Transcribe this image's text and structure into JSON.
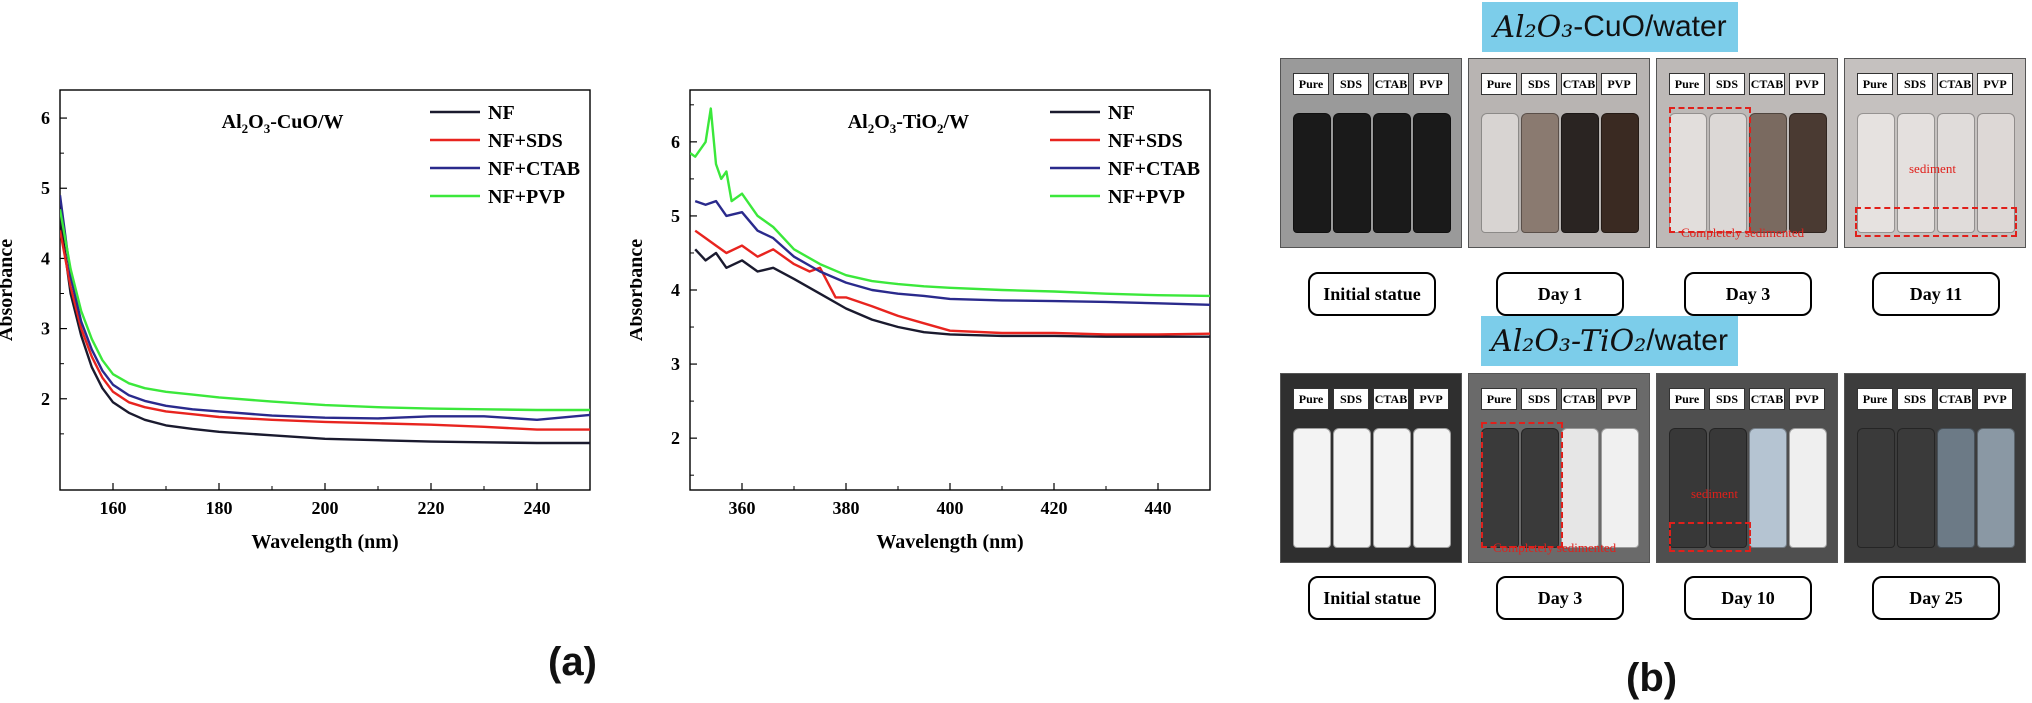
{
  "chart_data": [
    {
      "type": "line",
      "title": "",
      "annotation": "Al2O3-CuO/W",
      "xlabel": "Wavelength (nm)",
      "ylabel": "Absorbance",
      "xlim": [
        150,
        250
      ],
      "ylim": [
        0.7,
        6.4
      ],
      "xticks": [
        160,
        180,
        200,
        220,
        240
      ],
      "yticks": [
        2,
        3,
        4,
        5,
        6
      ],
      "legend": "top-right",
      "series": [
        {
          "name": "NF",
          "color": "#1a1a2e",
          "x": [
            150,
            152,
            154,
            156,
            158,
            160,
            163,
            166,
            170,
            175,
            180,
            190,
            200,
            210,
            220,
            230,
            240,
            250
          ],
          "y": [
            4.6,
            3.5,
            2.9,
            2.45,
            2.15,
            1.95,
            1.8,
            1.7,
            1.62,
            1.57,
            1.53,
            1.48,
            1.43,
            1.41,
            1.39,
            1.38,
            1.37,
            1.37
          ]
        },
        {
          "name": "NF+SDS",
          "color": "#e8241f",
          "x": [
            150,
            152,
            154,
            156,
            158,
            160,
            163,
            166,
            170,
            175,
            180,
            190,
            200,
            210,
            220,
            230,
            240,
            250
          ],
          "y": [
            4.4,
            3.6,
            3.0,
            2.6,
            2.3,
            2.1,
            1.95,
            1.88,
            1.82,
            1.78,
            1.74,
            1.7,
            1.67,
            1.65,
            1.63,
            1.6,
            1.56,
            1.56
          ]
        },
        {
          "name": "NF+CTAB",
          "color": "#2a2a8c",
          "x": [
            150,
            152,
            154,
            156,
            158,
            160,
            163,
            166,
            170,
            175,
            180,
            190,
            200,
            210,
            220,
            230,
            240,
            250
          ],
          "y": [
            4.9,
            3.75,
            3.1,
            2.7,
            2.4,
            2.2,
            2.05,
            1.97,
            1.9,
            1.85,
            1.82,
            1.76,
            1.73,
            1.72,
            1.75,
            1.75,
            1.7,
            1.77
          ]
        },
        {
          "name": "NF+PVP",
          "color": "#3be83b",
          "x": [
            150,
            152,
            154,
            156,
            158,
            160,
            163,
            166,
            170,
            175,
            180,
            190,
            200,
            210,
            220,
            230,
            240,
            250
          ],
          "y": [
            4.7,
            3.85,
            3.25,
            2.85,
            2.55,
            2.35,
            2.22,
            2.15,
            2.1,
            2.06,
            2.02,
            1.96,
            1.91,
            1.88,
            1.86,
            1.85,
            1.84,
            1.84
          ]
        }
      ]
    },
    {
      "type": "line",
      "title": "",
      "annotation": "Al2O3-TiO2/W",
      "xlabel": "Wavelength (nm)",
      "ylabel": "Absorbance",
      "xlim": [
        350,
        450
      ],
      "ylim": [
        1.3,
        6.7
      ],
      "xticks": [
        360,
        380,
        400,
        420,
        440
      ],
      "yticks": [
        2,
        3,
        4,
        5,
        6
      ],
      "legend": "top-right",
      "series": [
        {
          "name": "NF",
          "color": "#1a1a2e",
          "x": [
            351,
            353,
            355,
            357,
            360,
            363,
            366,
            370,
            375,
            380,
            385,
            390,
            395,
            400,
            410,
            420,
            430,
            440,
            450
          ],
          "y": [
            4.55,
            4.4,
            4.5,
            4.3,
            4.4,
            4.25,
            4.3,
            4.15,
            3.95,
            3.75,
            3.6,
            3.5,
            3.43,
            3.4,
            3.38,
            3.38,
            3.37,
            3.37,
            3.37
          ]
        },
        {
          "name": "NF+SDS",
          "color": "#e8241f",
          "x": [
            351,
            353,
            355,
            357,
            360,
            363,
            366,
            370,
            373,
            375,
            378,
            380,
            385,
            390,
            395,
            400,
            410,
            420,
            430,
            440,
            450
          ],
          "y": [
            4.8,
            4.7,
            4.6,
            4.5,
            4.6,
            4.45,
            4.55,
            4.35,
            4.25,
            4.3,
            3.9,
            3.9,
            3.78,
            3.65,
            3.55,
            3.45,
            3.42,
            3.42,
            3.4,
            3.4,
            3.41
          ]
        },
        {
          "name": "NF+CTAB",
          "color": "#2a2a8c",
          "x": [
            351,
            353,
            355,
            357,
            360,
            363,
            366,
            370,
            375,
            380,
            385,
            390,
            395,
            400,
            410,
            420,
            430,
            440,
            450
          ],
          "y": [
            5.2,
            5.15,
            5.2,
            5.0,
            5.05,
            4.8,
            4.7,
            4.45,
            4.25,
            4.1,
            4.0,
            3.95,
            3.92,
            3.88,
            3.86,
            3.85,
            3.84,
            3.82,
            3.8
          ]
        },
        {
          "name": "NF+PVP",
          "color": "#3be83b",
          "x": [
            350,
            351,
            353,
            354,
            355,
            356,
            357,
            358,
            360,
            363,
            366,
            370,
            375,
            380,
            385,
            390,
            395,
            400,
            410,
            420,
            430,
            440,
            450
          ],
          "y": [
            5.85,
            5.8,
            6.0,
            6.45,
            5.7,
            5.5,
            5.6,
            5.2,
            5.3,
            5.0,
            4.85,
            4.55,
            4.35,
            4.2,
            4.12,
            4.08,
            4.05,
            4.03,
            4.0,
            3.98,
            3.95,
            3.93,
            3.92
          ]
        }
      ]
    }
  ],
  "panel_a": {
    "label": "(a)"
  },
  "panel_b": {
    "label": "(b)",
    "cuo": {
      "banner_chem": "Al₂O₃",
      "banner_rest": "-CuO/water",
      "bottle_labels": [
        "Pure",
        "SDS",
        "CTAB",
        "PVP"
      ],
      "stages": [
        "Initial statue",
        "Day 1",
        "Day 3",
        "Day 11"
      ],
      "annotations": {
        "completely": "Completely sedimented",
        "sediment": "sediment"
      }
    },
    "tio": {
      "banner_chem": "Al₂O₃-TiO₂",
      "banner_rest": "/water",
      "bottle_labels": [
        "Pure",
        "SDS",
        "CTAB",
        "PVP"
      ],
      "stages": [
        "Initial statue",
        "Day 3",
        "Day 10",
        "Day 25"
      ],
      "annotations": {
        "completely": "Completely sedimented",
        "sediment": "sediment"
      }
    }
  },
  "colors": {
    "arrow": "#e81b12",
    "banner": "#7ccdea"
  }
}
